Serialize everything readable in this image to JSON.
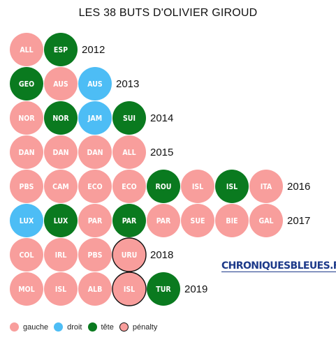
{
  "title": "LES 38 BUTS D'OLIVIER GIROUD",
  "brand": "CHRONIQUESBLEUES.FR",
  "colors": {
    "gauche": "#f89e9c",
    "droit": "#4dbdf5",
    "tete": "#0a7a1f",
    "penalty_border": "#111111"
  },
  "legend": [
    {
      "key": "gauche",
      "label": "gauche",
      "color": "#f89e9c"
    },
    {
      "key": "droit",
      "label": "droit",
      "color": "#4dbdf5"
    },
    {
      "key": "tete",
      "label": "tête",
      "color": "#0a7a1f"
    },
    {
      "key": "penalty",
      "label": "pénalty",
      "color": "#f89e9c"
    }
  ],
  "chart_data": {
    "type": "table",
    "title": "LES 38 BUTS D'OLIVIER GIROUD",
    "rows": [
      {
        "year": "2012",
        "goals": [
          {
            "opp": "ALL",
            "type": "gauche"
          },
          {
            "opp": "ESP",
            "type": "tete"
          }
        ]
      },
      {
        "year": "2013",
        "goals": [
          {
            "opp": "GEO",
            "type": "tete"
          },
          {
            "opp": "AUS",
            "type": "gauche"
          },
          {
            "opp": "AUS",
            "type": "droit"
          }
        ]
      },
      {
        "year": "2014",
        "goals": [
          {
            "opp": "NOR",
            "type": "gauche"
          },
          {
            "opp": "NOR",
            "type": "tete"
          },
          {
            "opp": "JAM",
            "type": "droit"
          },
          {
            "opp": "SUI",
            "type": "tete"
          }
        ]
      },
      {
        "year": "2015",
        "goals": [
          {
            "opp": "DAN",
            "type": "gauche"
          },
          {
            "opp": "DAN",
            "type": "gauche"
          },
          {
            "opp": "DAN",
            "type": "gauche"
          },
          {
            "opp": "ALL",
            "type": "gauche"
          }
        ]
      },
      {
        "year": "2016",
        "goals": [
          {
            "opp": "PBS",
            "type": "gauche"
          },
          {
            "opp": "CAM",
            "type": "gauche"
          },
          {
            "opp": "ECO",
            "type": "gauche"
          },
          {
            "opp": "ECO",
            "type": "gauche"
          },
          {
            "opp": "ROU",
            "type": "tete"
          },
          {
            "opp": "ISL",
            "type": "gauche"
          },
          {
            "opp": "ISL",
            "type": "tete"
          },
          {
            "opp": "ITA",
            "type": "gauche"
          }
        ]
      },
      {
        "year": "2017",
        "goals": [
          {
            "opp": "LUX",
            "type": "droit"
          },
          {
            "opp": "LUX",
            "type": "tete"
          },
          {
            "opp": "PAR",
            "type": "gauche"
          },
          {
            "opp": "PAR",
            "type": "tete"
          },
          {
            "opp": "PAR",
            "type": "gauche"
          },
          {
            "opp": "SUE",
            "type": "gauche"
          },
          {
            "opp": "BIE",
            "type": "gauche"
          },
          {
            "opp": "GAL",
            "type": "gauche"
          }
        ]
      },
      {
        "year": "2018",
        "goals": [
          {
            "opp": "COL",
            "type": "gauche"
          },
          {
            "opp": "IRL",
            "type": "gauche"
          },
          {
            "opp": "PBS",
            "type": "gauche"
          },
          {
            "opp": "URU",
            "type": "penalty"
          }
        ]
      },
      {
        "year": "2019",
        "goals": [
          {
            "opp": "MOL",
            "type": "gauche"
          },
          {
            "opp": "ISL",
            "type": "gauche"
          },
          {
            "opp": "ALB",
            "type": "gauche"
          },
          {
            "opp": "ISL",
            "type": "penalty"
          },
          {
            "opp": "TUR",
            "type": "tete"
          }
        ]
      }
    ]
  }
}
